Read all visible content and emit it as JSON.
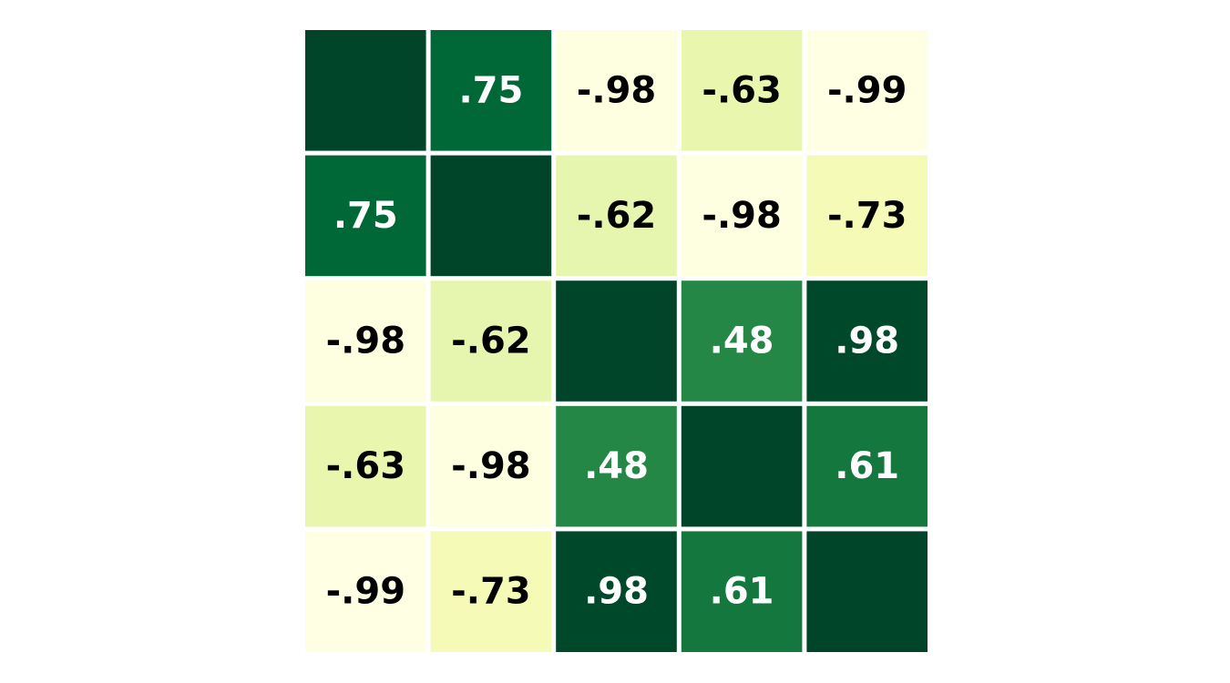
{
  "chart_data": {
    "type": "heatmap",
    "title": "",
    "xlabel": "",
    "ylabel": "",
    "rows": 5,
    "cols": 5,
    "matrix": [
      [
        1.0,
        0.75,
        -0.98,
        -0.63,
        -0.99
      ],
      [
        0.75,
        1.0,
        -0.62,
        -0.98,
        -0.73
      ],
      [
        -0.98,
        -0.62,
        1.0,
        0.48,
        0.98
      ],
      [
        -0.63,
        -0.98,
        0.48,
        1.0,
        0.61
      ],
      [
        -0.99,
        -0.73,
        0.98,
        0.61,
        1.0
      ]
    ],
    "labels": [
      [
        "",
        ".75",
        "-.98",
        "-.63",
        "-.99"
      ],
      [
        ".75",
        "",
        "-.62",
        "-.98",
        "-.73"
      ],
      [
        "-.98",
        "-.62",
        "",
        ".48",
        ".98"
      ],
      [
        "-.63",
        "-.98",
        ".48",
        "",
        ".61"
      ],
      [
        "-.99",
        "-.73",
        ".98",
        ".61",
        ""
      ]
    ],
    "value_range": [
      -1,
      1
    ],
    "colormap": "YlGn",
    "colors": {
      "gap": "#ffffff",
      "dark_text": "#000000",
      "light_text": "#ffffff"
    },
    "grid": false,
    "legend": "none"
  }
}
